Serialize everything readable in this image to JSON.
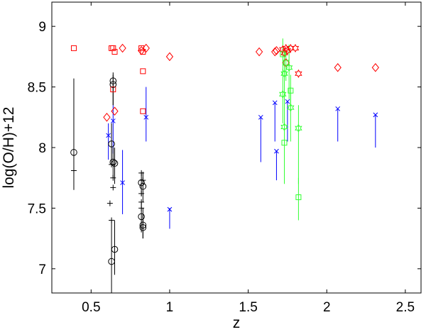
{
  "chart_data": {
    "type": "scatter",
    "xlabel": "z",
    "ylabel": "log(O/H)+12",
    "xlim": [
      0.25,
      2.6
    ],
    "ylim": [
      6.8,
      9.2
    ],
    "xticks": [
      "0.5",
      "1",
      "1.5",
      "2",
      "2.5"
    ],
    "yticks": [
      "7",
      "7.5",
      "8",
      "8.5",
      "9"
    ],
    "grid": false,
    "series": [
      {
        "marker": "diamond",
        "color": "#ff0000",
        "points": [
          {
            "x": 0.6,
            "y": 8.25
          },
          {
            "x": 0.65,
            "y": 8.3
          },
          {
            "x": 0.7,
            "y": 8.82
          },
          {
            "x": 0.82,
            "y": 8.8
          },
          {
            "x": 0.85,
            "y": 8.82
          },
          {
            "x": 1.0,
            "y": 8.75
          },
          {
            "x": 1.57,
            "y": 8.79
          },
          {
            "x": 1.67,
            "y": 8.79
          },
          {
            "x": 1.68,
            "y": 8.8
          },
          {
            "x": 1.74,
            "y": 8.7
          },
          {
            "x": 2.07,
            "y": 8.66
          },
          {
            "x": 2.31,
            "y": 8.66
          }
        ]
      },
      {
        "marker": "square",
        "color": "#ff0000",
        "points": [
          {
            "x": 0.39,
            "y": 8.82
          },
          {
            "x": 0.63,
            "y": 8.82
          },
          {
            "x": 0.64,
            "y": 8.82
          },
          {
            "x": 0.65,
            "y": 8.79
          },
          {
            "x": 0.64,
            "y": 8.48
          },
          {
            "x": 0.82,
            "y": 8.82
          },
          {
            "x": 0.83,
            "y": 8.79
          },
          {
            "x": 0.83,
            "y": 8.63
          },
          {
            "x": 0.83,
            "y": 8.3
          }
        ]
      },
      {
        "marker": "hexagram",
        "color": "#ff0000",
        "points": [
          {
            "x": 1.72,
            "y": 8.81
          },
          {
            "x": 1.74,
            "y": 8.82
          },
          {
            "x": 1.75,
            "y": 8.8
          },
          {
            "x": 1.77,
            "y": 8.82
          },
          {
            "x": 1.8,
            "y": 8.82
          },
          {
            "x": 1.73,
            "y": 8.78
          },
          {
            "x": 1.82,
            "y": 8.61
          }
        ]
      },
      {
        "marker": "square",
        "color": "#33ff33",
        "points": [
          {
            "x": 1.72,
            "y": 8.77,
            "err": [
              8.63,
              8.9
            ]
          },
          {
            "x": 1.74,
            "y": 8.7,
            "err": [
              8.55,
              8.8
            ]
          },
          {
            "x": 1.77,
            "y": 8.47,
            "err": [
              8.3,
              8.6
            ]
          },
          {
            "x": 1.73,
            "y": 8.04,
            "err": [
              7.7,
              8.3
            ]
          },
          {
            "x": 1.82,
            "y": 7.59,
            "err": [
              7.4,
              7.75
            ]
          }
        ]
      },
      {
        "marker": "hexagram",
        "color": "#33ff33",
        "points": [
          {
            "x": 1.76,
            "y": 8.66,
            "err": [
              8.4,
              8.85
            ]
          },
          {
            "x": 1.73,
            "y": 8.61,
            "err": [
              8.45,
              8.8
            ]
          },
          {
            "x": 1.72,
            "y": 8.44,
            "err": [
              8.2,
              8.65
            ]
          },
          {
            "x": 1.77,
            "y": 8.33,
            "err": [
              8.05,
              8.5
            ]
          },
          {
            "x": 1.73,
            "y": 8.17,
            "err": [
              7.85,
              8.45
            ]
          },
          {
            "x": 1.82,
            "y": 8.16,
            "err": [
              7.7,
              8.35
            ]
          }
        ]
      },
      {
        "marker": "x",
        "color": "#0000ff",
        "points": [
          {
            "x": 0.61,
            "y": 8.1,
            "err": [
              7.9,
              8.2
            ]
          },
          {
            "x": 0.64,
            "y": 8.22,
            "err": [
              7.95,
              8.35
            ]
          },
          {
            "x": 0.7,
            "y": 7.71,
            "err": [
              7.45,
              7.98
            ]
          },
          {
            "x": 0.85,
            "y": 8.25,
            "err": [
              8.05,
              8.5
            ]
          },
          {
            "x": 1.0,
            "y": 7.49,
            "err": [
              7.33,
              7.5
            ]
          },
          {
            "x": 1.58,
            "y": 8.25,
            "err": [
              7.88,
              8.25
            ]
          },
          {
            "x": 1.67,
            "y": 8.37,
            "err": [
              8.05,
              8.37
            ]
          },
          {
            "x": 1.68,
            "y": 7.97,
            "err": [
              7.73,
              7.97
            ]
          },
          {
            "x": 1.75,
            "y": 8.38,
            "err": [
              8.05,
              8.38
            ]
          },
          {
            "x": 2.07,
            "y": 8.32,
            "err": [
              8.05,
              8.32
            ]
          },
          {
            "x": 2.31,
            "y": 8.27,
            "err": [
              8.0,
              8.27
            ]
          }
        ]
      },
      {
        "marker": "circle",
        "color": "#000000",
        "points": [
          {
            "x": 0.39,
            "y": 7.96,
            "err": [
              7.65,
              8.57
            ]
          },
          {
            "x": 0.64,
            "y": 8.55,
            "err": [
              8.35,
              8.62
            ]
          },
          {
            "x": 0.64,
            "y": 8.52,
            "err": [
              8.35,
              8.6
            ]
          },
          {
            "x": 0.63,
            "y": 8.03,
            "err": [
              7.88,
              8.2
            ]
          },
          {
            "x": 0.64,
            "y": 7.88,
            "err": [
              7.75,
              8.0
            ]
          },
          {
            "x": 0.65,
            "y": 7.87,
            "err": [
              7.7,
              8.0
            ]
          },
          {
            "x": 0.65,
            "y": 7.16,
            "err": [
              6.95,
              7.4
            ]
          },
          {
            "x": 0.63,
            "y": 7.06,
            "err": [
              6.8,
              7.4
            ]
          },
          {
            "x": 0.82,
            "y": 7.71,
            "err": [
              7.6,
              7.8
            ]
          },
          {
            "x": 0.83,
            "y": 7.68,
            "err": [
              7.55,
              7.8
            ]
          },
          {
            "x": 0.82,
            "y": 7.43,
            "err": [
              7.3,
              7.55
            ]
          },
          {
            "x": 0.83,
            "y": 7.36,
            "err": [
              7.25,
              7.5
            ]
          },
          {
            "x": 0.83,
            "y": 7.34,
            "err": [
              7.25,
              7.45
            ]
          }
        ]
      },
      {
        "marker": "plus",
        "color": "#000000",
        "points": [
          {
            "x": 0.39,
            "y": 7.81
          },
          {
            "x": 0.63,
            "y": 7.86
          },
          {
            "x": 0.64,
            "y": 7.75
          },
          {
            "x": 0.64,
            "y": 7.67
          },
          {
            "x": 0.62,
            "y": 7.54
          },
          {
            "x": 0.63,
            "y": 7.4
          },
          {
            "x": 0.82,
            "y": 7.79
          },
          {
            "x": 0.83,
            "y": 7.73
          },
          {
            "x": 0.82,
            "y": 7.62
          },
          {
            "x": 0.82,
            "y": 7.55
          },
          {
            "x": 0.82,
            "y": 7.5
          }
        ]
      }
    ]
  }
}
